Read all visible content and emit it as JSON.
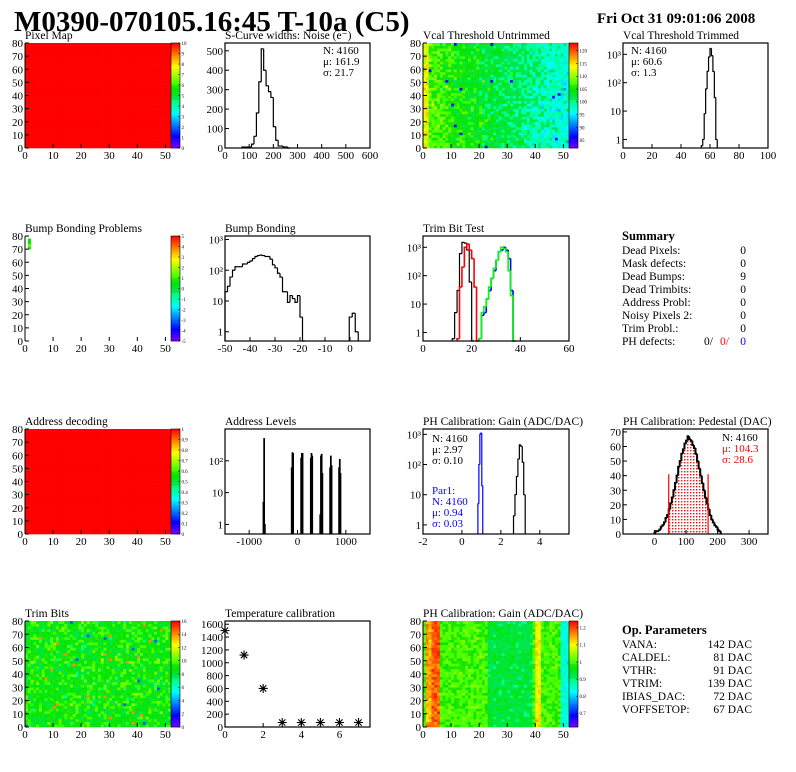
{
  "header": {
    "title": "M0390-070105.16:45 T-10a (C5)",
    "date": "Fri Oct 31 09:01:06 2008"
  },
  "summary": {
    "title": "Summary",
    "rows": [
      {
        "label": "Dead Pixels:",
        "value": "0"
      },
      {
        "label": "Mask defects:",
        "value": "0"
      },
      {
        "label": "Dead Bumps:",
        "value": "9"
      },
      {
        "label": "Dead Trimbits:",
        "value": "0"
      },
      {
        "label": "Address Probl:",
        "value": "0"
      },
      {
        "label": "Noisy Pixels 2:",
        "value": "0"
      },
      {
        "label": "Trim Probl.:",
        "value": "0"
      }
    ],
    "ph_defects": {
      "label": "PH defects:",
      "v1": "0/",
      "v2": "0/",
      "v3": "0",
      "c2": "#ff0000",
      "c3": "#0000ff"
    }
  },
  "op_parameters": {
    "title": "Op. Parameters",
    "rows": [
      {
        "label": "VANA:",
        "value": "142 DAC"
      },
      {
        "label": "CALDEL:",
        "value": "81 DAC"
      },
      {
        "label": "VTHR:",
        "value": "91 DAC"
      },
      {
        "label": "VTRIM:",
        "value": "139 DAC"
      },
      {
        "label": "IBIAS_DAC:",
        "value": "72 DAC"
      },
      {
        "label": "VOFFSETOP:",
        "value": "67 DAC"
      }
    ]
  },
  "chart_data": [
    {
      "id": "pixel_map",
      "type": "heatmap",
      "title": "Pixel Map",
      "xlim": [
        0,
        52
      ],
      "ylim": [
        0,
        80
      ],
      "xticks": [
        0,
        10,
        20,
        30,
        40,
        50
      ],
      "yticks": [
        0,
        10,
        20,
        30,
        40,
        50,
        60,
        70,
        80
      ],
      "zlim": [
        0,
        10
      ],
      "zticks": [
        "0",
        "1",
        "2",
        "3",
        "4",
        "5",
        "6",
        "7",
        "8",
        "9",
        "10"
      ],
      "pattern": "uniform",
      "value": 10
    },
    {
      "id": "s_curve",
      "type": "bar",
      "title": "S-Curve widths: Noise (e⁻)",
      "xlim": [
        0,
        600
      ],
      "ylim": [
        0,
        540
      ],
      "xticks": [
        0,
        100,
        200,
        300,
        400,
        500,
        600
      ],
      "yticks": [
        0,
        100,
        200,
        300,
        400,
        500
      ],
      "series": [
        {
          "x0": 70,
          "width": 10,
          "color": "#000000",
          "values": [
            5,
            5,
            5,
            5,
            20,
            60,
            180,
            340,
            510,
            400,
            320,
            290,
            260,
            110,
            40,
            10,
            10,
            5,
            5,
            0
          ]
        }
      ],
      "stats": [
        {
          "text": "N: 4160",
          "color": "#000000"
        },
        {
          "text": "μ: 161.9",
          "color": "#000000"
        },
        {
          "text": "σ: 21.7",
          "color": "#000000"
        }
      ]
    },
    {
      "id": "vcal_untrimmed",
      "type": "heatmap",
      "title": "Vcal Threshold Untrimmed",
      "xlim": [
        0,
        52
      ],
      "ylim": [
        0,
        80
      ],
      "xticks": [
        0,
        10,
        20,
        30,
        40,
        50
      ],
      "yticks": [
        0,
        10,
        20,
        30,
        40,
        50,
        60,
        70,
        80
      ],
      "zlim": [
        82,
        123
      ],
      "zticks": [
        "85",
        "90",
        "95",
        "100",
        "105",
        "110",
        "115",
        "120"
      ],
      "zvals": [
        85,
        90,
        95,
        100,
        105,
        110,
        115,
        120
      ],
      "pattern": "gradient-left-high"
    },
    {
      "id": "vcal_trimmed",
      "type": "bar",
      "title": "Vcal Threshold Trimmed",
      "xlim": [
        0,
        100
      ],
      "ylim": [
        0.5,
        2500
      ],
      "logy": true,
      "xticks": [
        0,
        20,
        40,
        60,
        80,
        100
      ],
      "yticks": [
        1,
        10,
        100,
        1000
      ],
      "ytick_labels": [
        "1",
        "10",
        "10²",
        "10³"
      ],
      "series": [
        {
          "x0": 54,
          "width": 1,
          "color": "#000000",
          "values": [
            0.6,
            1,
            8,
            60,
            250,
            800,
            1600,
            900,
            250,
            30,
            1
          ]
        }
      ],
      "stats": [
        {
          "text": "N: 4160",
          "color": "#000000"
        },
        {
          "text": "μ: 60.6",
          "color": "#000000"
        },
        {
          "text": "σ:  1.3",
          "color": "#000000"
        }
      ]
    },
    {
      "id": "bump_problems",
      "type": "heatmap",
      "title": "Bump Bonding Problems",
      "xlim": [
        0,
        52
      ],
      "ylim": [
        0,
        80
      ],
      "xticks": [
        0,
        10,
        20,
        30,
        40,
        50
      ],
      "yticks": [
        0,
        10,
        20,
        30,
        40,
        50,
        60,
        70,
        80
      ],
      "zlim": [
        -5,
        5
      ],
      "zticks": [
        "-5",
        "-4",
        "-3",
        "-2",
        "-1",
        "0",
        "1",
        "2",
        "3",
        "4",
        "5"
      ],
      "pattern": "sparse"
    },
    {
      "id": "bump_bonding",
      "type": "bar",
      "title": "Bump Bonding",
      "xlim": [
        -50,
        8
      ],
      "ylim": [
        0.5,
        1300
      ],
      "logy": true,
      "xticks": [
        -50,
        -40,
        -30,
        -20,
        -10,
        0
      ],
      "yticks": [
        1,
        10,
        100,
        1000
      ],
      "ytick_labels": [
        "1",
        "10",
        "10²",
        "10³"
      ],
      "series": [
        {
          "x0": -50,
          "width": 1,
          "color": "#000000",
          "values": [
            20,
            30,
            60,
            100,
            130,
            130,
            130,
            160,
            160,
            180,
            200,
            240,
            280,
            300,
            310,
            300,
            280,
            280,
            230,
            150,
            120,
            80,
            60,
            20,
            20,
            9,
            15,
            12,
            9,
            15,
            3,
            0.4
          ]
        },
        {
          "x0": -0.3,
          "width": 1.2,
          "color": "#000000",
          "values": [
            3,
            4,
            1
          ]
        }
      ]
    },
    {
      "id": "trim_bit_test",
      "type": "bar",
      "title": "Trim Bit Test",
      "xlim": [
        0,
        60
      ],
      "ylim": [
        0.5,
        2500
      ],
      "logy": true,
      "xticks": [
        0,
        20,
        40,
        60
      ],
      "yticks": [
        1,
        10,
        100,
        1000
      ],
      "ytick_labels": [
        "1",
        "10",
        "10²",
        "10³"
      ],
      "series": [
        {
          "x0": 12,
          "width": 1,
          "color": "#000000",
          "values": [
            0.6,
            5,
            30,
            600,
            1500,
            1400,
            800,
            60,
            0.5
          ]
        },
        {
          "x0": 14,
          "width": 1,
          "color": "#ff0000",
          "values": [
            0.6,
            40,
            200,
            1000,
            1300,
            800,
            400,
            40,
            0.5
          ]
        },
        {
          "x0": 23,
          "width": 1,
          "color": "#0000ff",
          "values": [
            0.6,
            4,
            5,
            15,
            30,
            80,
            150,
            350,
            700,
            800,
            1000,
            800,
            400,
            30,
            0.5
          ]
        },
        {
          "x0": 23,
          "width": 1,
          "color": "#00ff00",
          "values": [
            0.6,
            5,
            8,
            15,
            40,
            80,
            180,
            350,
            700,
            1000,
            900,
            700,
            150,
            20,
            0.5
          ]
        }
      ]
    },
    {
      "id": "address_decoding",
      "type": "heatmap",
      "title": "Address decoding",
      "xlim": [
        0,
        52
      ],
      "ylim": [
        0,
        80
      ],
      "xticks": [
        0,
        10,
        20,
        30,
        40,
        50
      ],
      "yticks": [
        0,
        10,
        20,
        30,
        40,
        50,
        60,
        70,
        80
      ],
      "zlim": [
        0,
        1
      ],
      "zticks": [
        "0",
        "0.1",
        "0.2",
        "0.3",
        "0.4",
        "0.5",
        "0.6",
        "0.7",
        "0.8",
        "0.9",
        "1"
      ],
      "pattern": "uniform",
      "value": 1
    },
    {
      "id": "address_levels",
      "type": "bar",
      "title": "Address Levels",
      "xlim": [
        -1500,
        1500
      ],
      "ylim": [
        0.5,
        1000
      ],
      "logy": true,
      "xticks": [
        -1000,
        0,
        1000
      ],
      "yticks": [
        1,
        10,
        100
      ],
      "ytick_labels": [
        "1",
        "10",
        "10²"
      ],
      "spike_width": 15,
      "spikes": [
        [
          -705,
          5
        ],
        [
          -690,
          500
        ],
        [
          -675,
          1
        ],
        [
          -120,
          60
        ],
        [
          -105,
          180
        ],
        [
          -90,
          170
        ],
        [
          75,
          120
        ],
        [
          90,
          170
        ],
        [
          105,
          170
        ],
        [
          275,
          120
        ],
        [
          290,
          170
        ],
        [
          305,
          140
        ],
        [
          470,
          2
        ],
        [
          485,
          140
        ],
        [
          500,
          160
        ],
        [
          515,
          40
        ],
        [
          675,
          60
        ],
        [
          690,
          140
        ],
        [
          705,
          70
        ],
        [
          860,
          60
        ],
        [
          875,
          110
        ],
        [
          890,
          40
        ]
      ]
    },
    {
      "id": "ph_gain",
      "type": "bar",
      "title": "PH Calibration: Gain (ADC/DAC)",
      "xlim": [
        -2,
        5.5
      ],
      "ylim": [
        0.5,
        1500
      ],
      "logy": true,
      "xticks": [
        -2,
        0,
        2,
        4
      ],
      "yticks": [
        1,
        10,
        100,
        1000
      ],
      "ytick_labels": [
        "1",
        "10",
        "10²",
        "10³"
      ],
      "series": [
        {
          "x0": 0.82,
          "width": 0.05,
          "color": "#0000ff",
          "values": [
            5,
            100,
            1000,
            1100,
            20
          ]
        },
        {
          "x0": 2.65,
          "width": 0.075,
          "color": "#000000",
          "values": [
            2,
            10,
            40,
            150,
            450,
            400,
            120,
            10
          ]
        }
      ],
      "stats": [
        {
          "text": "N: 4160",
          "color": "#000000"
        },
        {
          "text": "μ: 2.97",
          "color": "#000000"
        },
        {
          "text": "σ: 0.10",
          "color": "#000000"
        }
      ],
      "stats2": [
        {
          "text": "Par1:",
          "color": "#0000ff"
        },
        {
          "text": "N: 4160",
          "color": "#0000ff"
        },
        {
          "text": "μ: 0.94",
          "color": "#0000ff"
        },
        {
          "text": "σ: 0.03",
          "color": "#0000ff"
        }
      ]
    },
    {
      "id": "ph_pedestal",
      "type": "bar",
      "title": "PH Calibration: Pedestal (DAC)",
      "xlim": [
        -100,
        360
      ],
      "ylim": [
        0,
        72
      ],
      "xticks": [
        0,
        100,
        200,
        300
      ],
      "yticks": [
        0,
        10,
        20,
        30,
        40,
        50,
        60,
        70
      ],
      "series": [
        {
          "x0": 0,
          "width": 5,
          "color": "#000000",
          "values": [
            1,
            2,
            2,
            3,
            5,
            6,
            8,
            11,
            13,
            17,
            21,
            25,
            30,
            35,
            40,
            46,
            50,
            55,
            58,
            62,
            64,
            67,
            65,
            64,
            61,
            59,
            55,
            50,
            45,
            40,
            35,
            30,
            25,
            21,
            17,
            13,
            10,
            8,
            6,
            5,
            3,
            2
          ]
        }
      ],
      "cut_range": [
        45,
        170
      ],
      "cut_color": "#ff0000",
      "stats": [
        {
          "text": "N: 4160",
          "color": "#000000"
        },
        {
          "text": "μ: 104.3",
          "color": "#ff0000"
        },
        {
          "text": "σ: 28.6",
          "color": "#ff0000"
        }
      ]
    },
    {
      "id": "trim_bits",
      "type": "heatmap",
      "title": "Trim Bits",
      "xlim": [
        0,
        52
      ],
      "ylim": [
        0,
        80
      ],
      "xticks": [
        0,
        10,
        20,
        30,
        40,
        50
      ],
      "yticks": [
        0,
        10,
        20,
        30,
        40,
        50,
        60,
        70,
        80
      ],
      "zlim": [
        0,
        16
      ],
      "zticks": [
        "0",
        "2",
        "4",
        "6",
        "8",
        "10",
        "12",
        "14",
        "16"
      ],
      "zvals": [
        0,
        2,
        4,
        6,
        8,
        10,
        12,
        14,
        16
      ],
      "pattern": "noise-mid"
    },
    {
      "id": "temperature",
      "type": "scatter",
      "title": "Temperature calibration",
      "xlim": [
        0,
        7.6
      ],
      "ylim": [
        0,
        1650
      ],
      "xticks": [
        0,
        2,
        4,
        6
      ],
      "yticks": [
        0,
        200,
        400,
        600,
        800,
        1000,
        1200,
        1400,
        1600
      ],
      "points": [
        [
          0,
          1500
        ],
        [
          1,
          1120
        ],
        [
          2,
          600
        ],
        [
          3,
          70
        ],
        [
          4,
          70
        ],
        [
          5,
          70
        ],
        [
          6,
          70
        ],
        [
          7,
          70
        ]
      ]
    },
    {
      "id": "ph_gain_map",
      "type": "heatmap",
      "title": "PH Calibration: Gain (ADC/DAC)",
      "xlim": [
        0,
        52
      ],
      "ylim": [
        0,
        80
      ],
      "xticks": [
        0,
        10,
        20,
        30,
        40,
        50
      ],
      "yticks": [
        0,
        10,
        20,
        30,
        40,
        50,
        60,
        70,
        80
      ],
      "zlim": [
        0.62,
        1.24
      ],
      "zticks": [
        "0.7",
        "0.8",
        "0.9",
        "1",
        "1.1",
        "1.2"
      ],
      "zvals": [
        0.7,
        0.8,
        0.9,
        1.0,
        1.1,
        1.2
      ],
      "pattern": "columns"
    }
  ]
}
